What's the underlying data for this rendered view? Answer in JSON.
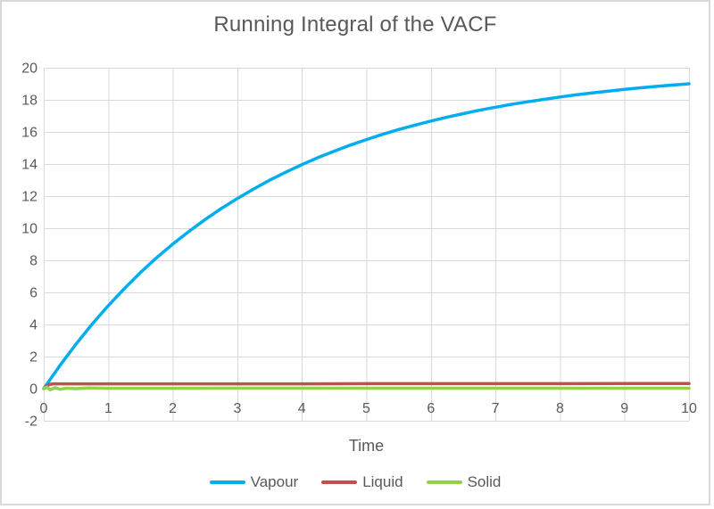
{
  "chart": {
    "background_color": "#ffffff",
    "border_color": "#d9d9d9",
    "text_color": "#595959",
    "gridline_color": "#d9d9d9"
  },
  "chart_data": {
    "type": "line",
    "title": "Running Integral of the VACF",
    "xlabel": "Time",
    "ylabel": "",
    "xlim": [
      0,
      10
    ],
    "ylim": [
      -2,
      20
    ],
    "xticks": [
      0,
      1,
      2,
      3,
      4,
      5,
      6,
      7,
      8,
      9,
      10
    ],
    "yticks": [
      -2,
      0,
      2,
      4,
      6,
      8,
      10,
      12,
      14,
      16,
      18,
      20
    ],
    "grid": true,
    "legend_position": "bottom-center",
    "series": [
      {
        "name": "Vapour",
        "color": "#00AEEF",
        "points": [
          [
            0,
            0
          ],
          [
            0.25,
            1.44
          ],
          [
            0.5,
            2.78
          ],
          [
            0.75,
            4.02
          ],
          [
            1,
            5.17
          ],
          [
            1.25,
            6.24
          ],
          [
            1.5,
            7.24
          ],
          [
            1.75,
            8.16
          ],
          [
            2,
            9.01
          ],
          [
            2.25,
            9.8
          ],
          [
            2.5,
            10.54
          ],
          [
            2.75,
            11.22
          ],
          [
            3,
            11.85
          ],
          [
            3.25,
            12.44
          ],
          [
            3.5,
            12.99
          ],
          [
            3.75,
            13.49
          ],
          [
            4,
            13.96
          ],
          [
            4.25,
            14.4
          ],
          [
            4.5,
            14.8
          ],
          [
            4.75,
            15.18
          ],
          [
            5,
            15.52
          ],
          [
            5.25,
            15.85
          ],
          [
            5.5,
            16.15
          ],
          [
            5.75,
            16.42
          ],
          [
            6,
            16.68
          ],
          [
            6.25,
            16.92
          ],
          [
            6.5,
            17.14
          ],
          [
            6.75,
            17.35
          ],
          [
            7,
            17.54
          ],
          [
            7.25,
            17.72
          ],
          [
            7.5,
            17.88
          ],
          [
            7.75,
            18.03
          ],
          [
            8,
            18.18
          ],
          [
            8.25,
            18.31
          ],
          [
            8.5,
            18.43
          ],
          [
            8.75,
            18.54
          ],
          [
            9,
            18.65
          ],
          [
            9.25,
            18.75
          ],
          [
            9.5,
            18.84
          ],
          [
            9.75,
            18.92
          ],
          [
            10,
            19.0
          ]
        ]
      },
      {
        "name": "Liquid",
        "color": "#C0504D",
        "points": [
          [
            0,
            0
          ],
          [
            0.05,
            0.18
          ],
          [
            0.1,
            0.27
          ],
          [
            0.15,
            0.3
          ],
          [
            0.3,
            0.3
          ],
          [
            1,
            0.3
          ],
          [
            2,
            0.3
          ],
          [
            3,
            0.3
          ],
          [
            4,
            0.3
          ],
          [
            5,
            0.31
          ],
          [
            6,
            0.31
          ],
          [
            7,
            0.31
          ],
          [
            8,
            0.31
          ],
          [
            9,
            0.32
          ],
          [
            10,
            0.32
          ]
        ]
      },
      {
        "name": "Solid",
        "color": "#92D050",
        "points": [
          [
            0,
            0
          ],
          [
            0.05,
            0.1
          ],
          [
            0.1,
            -0.07
          ],
          [
            0.18,
            0.06
          ],
          [
            0.25,
            -0.04
          ],
          [
            0.35,
            0.03
          ],
          [
            0.5,
            0.0
          ],
          [
            0.7,
            0.04
          ],
          [
            1,
            0.02
          ],
          [
            2,
            0.02
          ],
          [
            3,
            0.03
          ],
          [
            4,
            0.03
          ],
          [
            5,
            0.03
          ],
          [
            6,
            0.03
          ],
          [
            7,
            0.03
          ],
          [
            8,
            0.03
          ],
          [
            9,
            0.03
          ],
          [
            10,
            0.03
          ]
        ]
      }
    ]
  }
}
